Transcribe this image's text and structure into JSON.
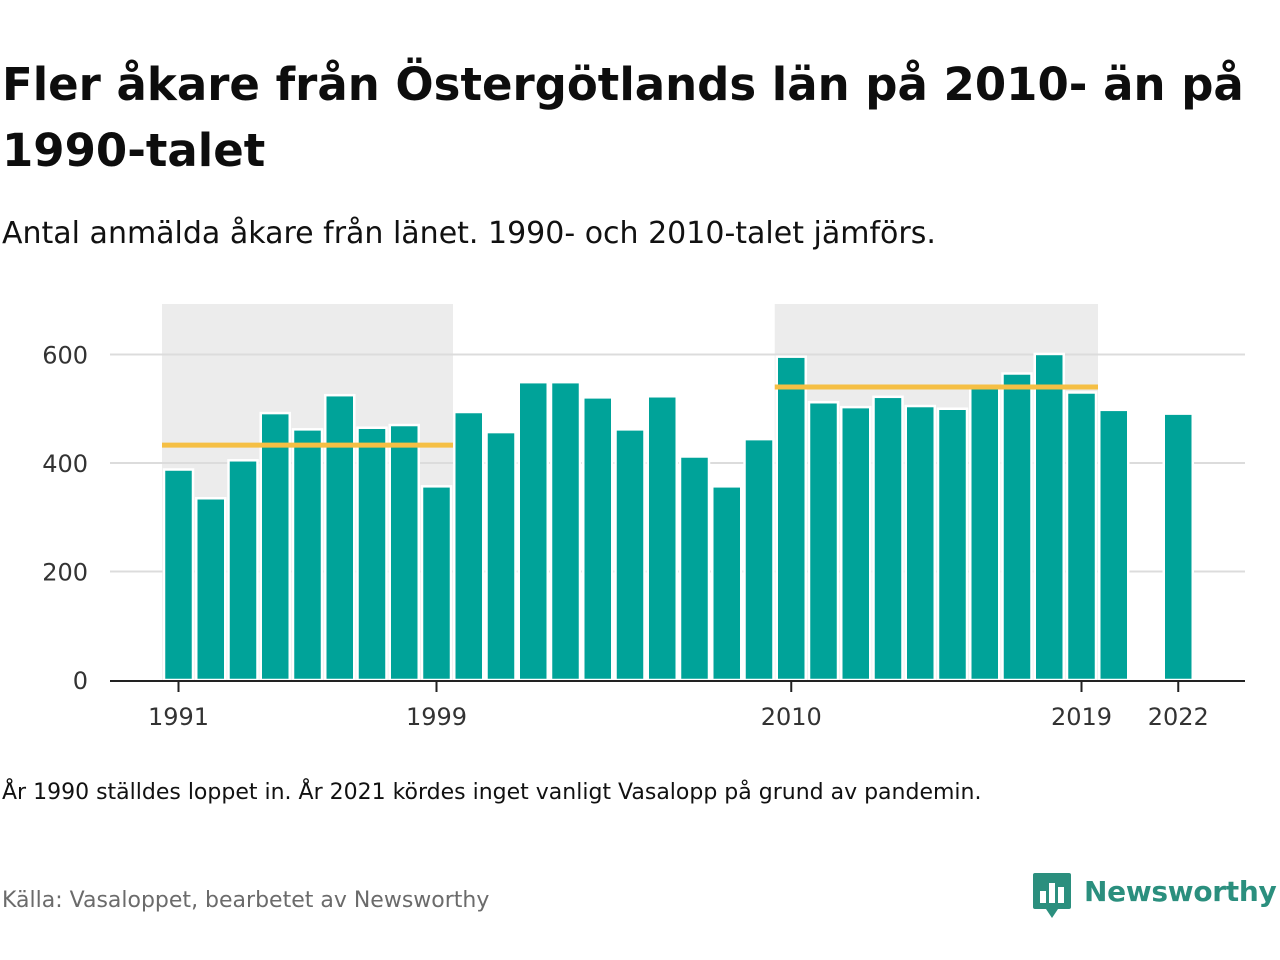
{
  "title": "Fler åkare från Östergötlands län på 2010- än på 1990-talet",
  "subtitle": "Antal anmälda åkare från länet. 1990- och 2010-talet jämförs.",
  "note": "År 1990 ställdes loppet in. År 2021 kördes inget vanligt Vasalopp på grund av pandemin.",
  "source": "Källa: Vasaloppet, bearbetet av Newsworthy",
  "brand": {
    "name": "Newsworthy",
    "icon": "newsworthy-logo-icon"
  },
  "colors": {
    "bar": "#00a399",
    "bar_outline": "#ffffff",
    "average": "#f5bf44",
    "highlight": "#ececec",
    "grid": "#dcdcdc",
    "axis": "#222222",
    "brand": "#2b8f7e"
  },
  "chart_data": {
    "type": "bar",
    "x": [
      1991,
      1992,
      1993,
      1994,
      1995,
      1996,
      1997,
      1998,
      1999,
      2000,
      2001,
      2002,
      2003,
      2004,
      2005,
      2006,
      2007,
      2008,
      2009,
      2010,
      2011,
      2012,
      2013,
      2014,
      2015,
      2016,
      2017,
      2018,
      2019,
      2020,
      2021,
      2022
    ],
    "values": [
      388,
      335,
      405,
      492,
      462,
      525,
      465,
      470,
      357,
      494,
      457,
      549,
      549,
      521,
      462,
      523,
      412,
      357,
      444,
      596,
      512,
      503,
      522,
      505,
      500,
      539,
      565,
      601,
      530,
      498,
      null,
      491
    ],
    "x_tick_labels": [
      "1991",
      "1999",
      "2010",
      "2019",
      "2022"
    ],
    "y_ticks": [
      0,
      200,
      400,
      600
    ],
    "ylim": [
      0,
      700
    ],
    "grid": true,
    "highlight_periods": [
      {
        "from": 1991,
        "to": 1999,
        "average": 433
      },
      {
        "from": 2010,
        "to": 2019,
        "average": 540
      }
    ]
  }
}
